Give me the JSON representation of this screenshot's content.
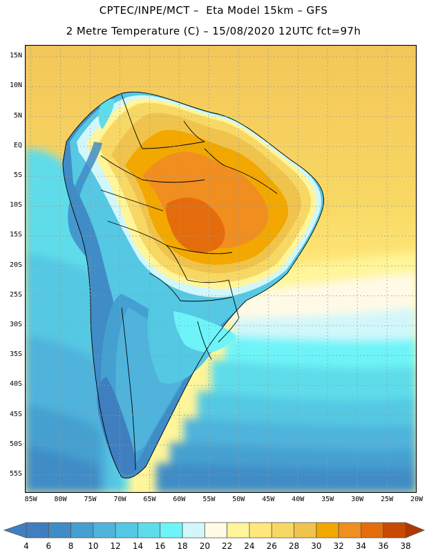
{
  "header": {
    "line1": "CPTEC/INPE/MCT –  Eta Model 15km – GFS",
    "line2": "2 Metre Temperature (C) – 15/08/2020 12UTC fct=97h"
  },
  "map": {
    "lon_range": [
      -86,
      -20
    ],
    "lat_range": [
      -58,
      17
    ],
    "lat_ticks": [
      "15N",
      "10N",
      "5N",
      "EQ",
      "5S",
      "10S",
      "15S",
      "20S",
      "25S",
      "30S",
      "35S",
      "40S",
      "45S",
      "50S",
      "55S"
    ],
    "lat_values": [
      15,
      10,
      5,
      0,
      -5,
      -10,
      -15,
      -20,
      -25,
      -30,
      -35,
      -40,
      -45,
      -50,
      -55
    ],
    "lon_ticks": [
      "85W",
      "80W",
      "75W",
      "70W",
      "65W",
      "60W",
      "55W",
      "50W",
      "45W",
      "40W",
      "35W",
      "30W",
      "25W",
      "20W"
    ],
    "lon_values": [
      -85,
      -80,
      -75,
      -70,
      -65,
      -60,
      -55,
      -50,
      -45,
      -40,
      -35,
      -30,
      -25,
      -20
    ]
  },
  "legend": {
    "labels": [
      "4",
      "6",
      "8",
      "10",
      "12",
      "14",
      "16",
      "18",
      "20",
      "22",
      "24",
      "26",
      "28",
      "30",
      "32",
      "34",
      "36",
      "38"
    ],
    "colors": [
      "#3f7fc0",
      "#3f7fc0",
      "#3f8cc6",
      "#44a0d0",
      "#4fb3dc",
      "#55c8e3",
      "#5fdcea",
      "#6ef4f8",
      "#d2f7fb",
      "#fffae6",
      "#fff59a",
      "#ffe77a",
      "#f8d864",
      "#f0c44c",
      "#f2a800",
      "#f08e20",
      "#e46c0c",
      "#c84a00",
      "#b03800"
    ]
  }
}
